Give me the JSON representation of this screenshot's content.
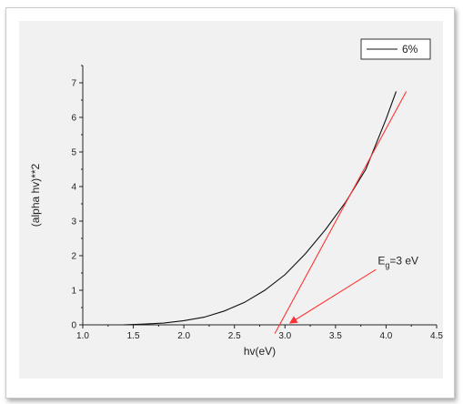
{
  "chart_data": {
    "type": "line",
    "xlabel": "hv(eV)",
    "ylabel": "(alpha hv)**2",
    "xlim": [
      1.0,
      4.5
    ],
    "ylim": [
      0,
      7.5
    ],
    "x_ticks": [
      "1.0",
      "1.5",
      "2.0",
      "2.5",
      "3.0",
      "3.5",
      "4.0",
      "4.5"
    ],
    "y_ticks": [
      "0",
      "1",
      "2",
      "3",
      "4",
      "5",
      "6",
      "7"
    ],
    "grid": false,
    "legend": {
      "position": "top-right",
      "entries": [
        "6%"
      ]
    },
    "series": [
      {
        "name": "6%",
        "color": "#111111",
        "x": [
          1.4,
          1.6,
          1.8,
          2.0,
          2.2,
          2.4,
          2.6,
          2.8,
          3.0,
          3.2,
          3.4,
          3.6,
          3.8,
          4.0,
          4.1
        ],
        "y": [
          0.0,
          0.02,
          0.05,
          0.12,
          0.22,
          0.4,
          0.65,
          1.0,
          1.45,
          2.05,
          2.75,
          3.55,
          4.5,
          5.95,
          6.75
        ]
      }
    ],
    "fit_lines": [
      {
        "color": "#ff3333",
        "x": [
          2.9,
          4.2
        ],
        "y": [
          -0.25,
          6.75
        ]
      },
      {
        "color": "#ff3333",
        "x": [
          3.05,
          3.9
        ],
        "y": [
          0.05,
          1.6
        ],
        "arrow": true
      }
    ],
    "annotation": {
      "text_main": "E",
      "text_sub": "g",
      "text_rest": "=3 eV",
      "x": 3.9,
      "y": 1.75
    }
  }
}
